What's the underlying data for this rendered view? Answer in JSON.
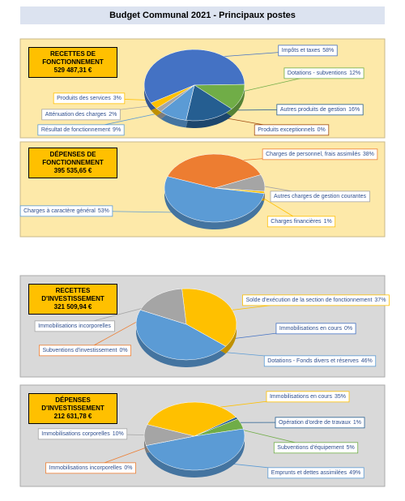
{
  "title": "Budget Communal 2021 - Principaux postes",
  "chart_data": [
    {
      "type": "pie",
      "title": "RECETTES DE FONCTIONNEMENT",
      "subtitle": "529 487,31 €",
      "categories": [
        "Impôts et taxes",
        "Dotations - subventions",
        "Autres produits de gestion",
        "Produits exceptionnels",
        "Résultat de fonctionnement",
        "Atténuation des charges",
        "Produits des services"
      ],
      "values": [
        58,
        12,
        16,
        0,
        9,
        2,
        3
      ],
      "value_labels": [
        "58%",
        "12%",
        "16%",
        "0%",
        "9%",
        "2%",
        "3%"
      ],
      "colors": [
        "#4472c4",
        "#70ad47",
        "#255e91",
        "#9e480e",
        "#5b9bd5",
        "#a5a5a5",
        "#ffc000"
      ]
    },
    {
      "type": "pie",
      "title": "DÉPENSES DE FONCTIONNEMENT",
      "subtitle": "395 535,65 €",
      "categories": [
        "Charges de personnel, frais assimilés",
        "Autres charges de gestion courantes",
        "Charges financières",
        "Charges à caractère général"
      ],
      "values": [
        38,
        8,
        1,
        53
      ],
      "value_labels": [
        "38%",
        null,
        "1%",
        "53%"
      ],
      "colors": [
        "#ed7d31",
        "#a5a5a5",
        "#ffc000",
        "#5b9bd5"
      ]
    },
    {
      "type": "pie",
      "title": "RECETTES D'INVESTISSEMENT",
      "subtitle": "321 509,94 €",
      "categories": [
        "Solde d'exécution de la section de fonctionnement",
        "Immobilisations en cours",
        "Dotations - Fonds divers et réserves",
        "Subventions d'investissement",
        "Immobilisations incorporelles"
      ],
      "values": [
        37,
        0,
        46,
        0,
        17
      ],
      "value_labels": [
        "37%",
        "0%",
        "46%",
        "0%",
        null
      ],
      "colors": [
        "#ffc000",
        "#4472c4",
        "#5b9bd5",
        "#ed7d31",
        "#a5a5a5"
      ]
    },
    {
      "type": "pie",
      "title": "DÉPENSES D'INVESTISSEMENT",
      "subtitle": "212 631,78 €",
      "categories": [
        "Immobilisations en cours",
        "Opération d'ordre de travaux",
        "Subventions d'équipement",
        "Emprunts et dettes assimilées",
        "Immobilisations incorporelles",
        "Immobilisations corporelles"
      ],
      "values": [
        35,
        1,
        5,
        49,
        0,
        10
      ],
      "value_labels": [
        "35%",
        "1%",
        "5%",
        "49%",
        "0%",
        "10%"
      ],
      "colors": [
        "#ffc000",
        "#255e91",
        "#70ad47",
        "#5b9bd5",
        "#ed7d31",
        "#a5a5a5"
      ]
    }
  ]
}
